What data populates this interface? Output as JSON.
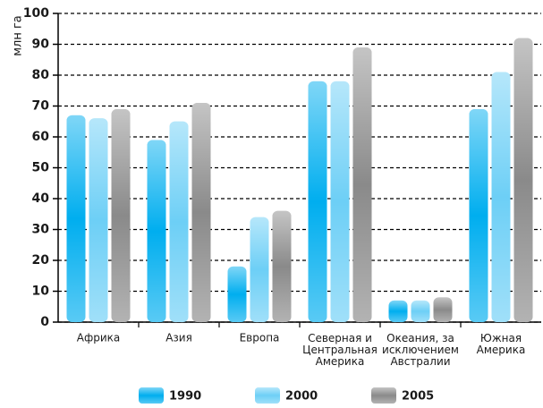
{
  "chart_data": {
    "type": "bar",
    "ylabel": "млн га",
    "categories": [
      "Африка",
      "Азия",
      "Европа",
      "Северная и\nЦентральная\nАмерика",
      "Океания, за\nисключением\nАвстралии",
      "Южная\nАмерика"
    ],
    "series": [
      {
        "name": "1990",
        "color": "#00aeef",
        "values": [
          67,
          59,
          18,
          78,
          7,
          69
        ]
      },
      {
        "name": "2000",
        "color": "#6dcff6",
        "values": [
          66,
          65,
          34,
          78,
          7,
          81
        ]
      },
      {
        "name": "2005",
        "color": "#8a8a8a",
        "values": [
          69,
          71,
          36,
          89,
          8,
          92
        ]
      }
    ],
    "ylim": [
      0,
      100
    ],
    "yticks": [
      0,
      10,
      20,
      30,
      40,
      50,
      60,
      70,
      80,
      90,
      100
    ],
    "grid": true,
    "legend": "bottom"
  }
}
